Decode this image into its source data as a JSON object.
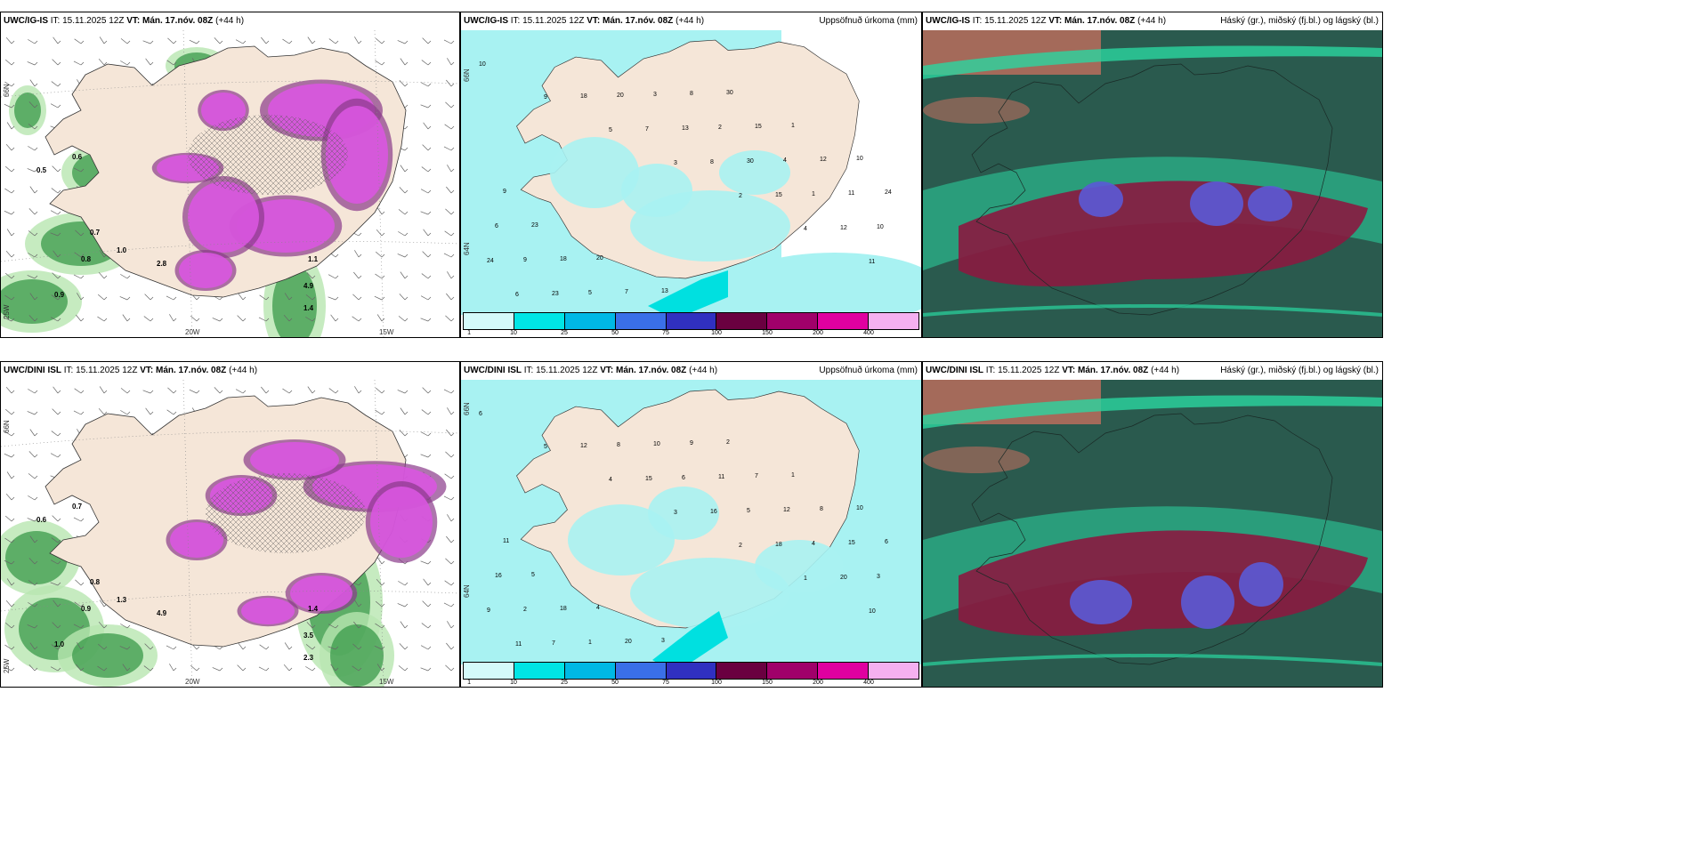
{
  "panels": {
    "p1": {
      "model": "UWC/IG-IS",
      "it": "IT: 15.11.2025 12Z",
      "vt": "VT: Mán. 17.nóv. 08Z",
      "lead": "(+44 h)",
      "right": ""
    },
    "p2": {
      "model": "UWC/IG-IS",
      "it": "IT: 15.11.2025 12Z",
      "vt": "VT: Mán. 17.nóv. 08Z",
      "lead": "(+44 h)",
      "right": "Uppsöfnuð úrkoma (mm)"
    },
    "p3": {
      "model": "UWC/IG-IS",
      "it": "IT: 15.11.2025 12Z",
      "vt": "VT: Mán. 17.nóv. 08Z",
      "lead": "(+44 h)",
      "right": "Háský (gr.), miðský (fj.bl.) og lágský (bl.)"
    },
    "p4": {
      "model": "UWC/DINI ISL",
      "it": "IT: 15.11.2025 12Z",
      "vt": "VT: Mán. 17.nóv. 08Z",
      "lead": "(+44 h)",
      "right": ""
    },
    "p5": {
      "model": "UWC/DINI ISL",
      "it": "IT: 15.11.2025 12Z",
      "vt": "VT: Mán. 17.nóv. 08Z",
      "lead": "(+44 h)",
      "right": "Uppsöfnuð úrkoma (mm)"
    },
    "p6": {
      "model": "UWC/DINI ISL",
      "it": "IT: 15.11.2025 12Z",
      "vt": "VT: Mán. 17.nóv. 08Z",
      "lead": "(+44 h)",
      "right": "Háský (gr.), miðský (fj.bl.) og lágský (bl.)"
    }
  },
  "axis_labels": {
    "lat66": "66N",
    "lat64": "64N",
    "lon20": "20W",
    "lon15": "15W",
    "lon25": "25W"
  },
  "colorbar": {
    "ticks": [
      "1",
      "10",
      "25",
      "50",
      "75",
      "100",
      "150",
      "200",
      "400"
    ],
    "colors": [
      "#d4fafa",
      "#00e5e5",
      "#00b8e5",
      "#3a6fe8",
      "#3030c0",
      "#6a0040",
      "#a0006a",
      "#e000a0",
      "#f5b0f0"
    ]
  },
  "colors": {
    "land": "#f5e6d8",
    "precip_light": "#a8f2f2",
    "snow_magenta": "#d957e0",
    "snow_dark": "#8a3a8a",
    "rain_green": "#3a9a4a",
    "rain_light_green": "#b8e6b0",
    "cloud_dark": "#2a5a4e",
    "cloud_teal": "#2ad6a0",
    "cloud_maroon": "#8a1a40",
    "cloud_blue": "#5a5ad6",
    "cloud_salmon": "#d87060"
  },
  "precip_values_top": [
    "10",
    "9",
    "5",
    "3",
    "2",
    "4",
    "11",
    "6",
    "18",
    "7",
    "8",
    "15",
    "12",
    "24",
    "23",
    "20",
    "13",
    "30",
    "1"
  ],
  "precip_values_bottom": [
    "6",
    "5",
    "4",
    "3",
    "2",
    "1",
    "10",
    "11",
    "12",
    "15",
    "16",
    "18",
    "20",
    "9",
    "7",
    "8"
  ],
  "rain_values_top": [
    "0.5",
    "0.6",
    "0.7",
    "0.8",
    "0.9",
    "1.0",
    "1.1",
    "1.4",
    "4.9",
    "2.8"
  ],
  "rain_values_bottom": [
    "0.6",
    "0.7",
    "0.8",
    "0.9",
    "1.0",
    "1.3",
    "1.4",
    "2.3",
    "3.5",
    "4.9"
  ]
}
